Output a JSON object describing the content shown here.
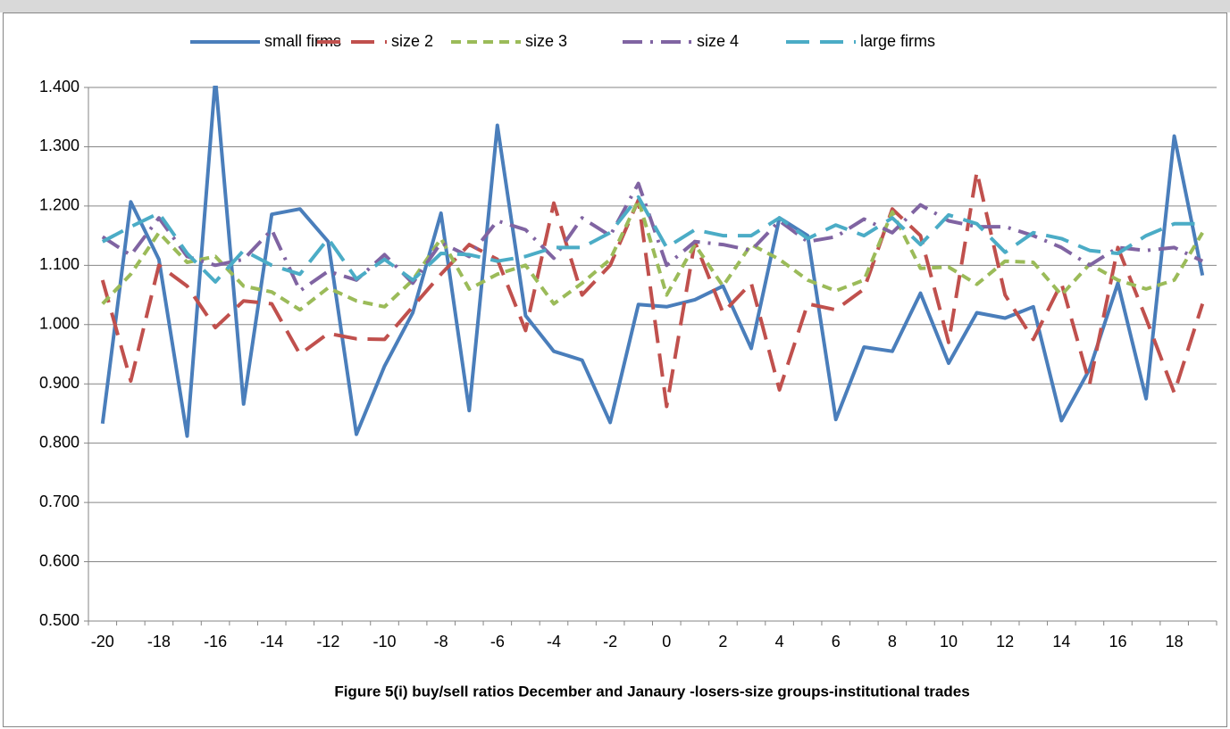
{
  "chart_data": {
    "type": "line",
    "title": "Figure 5(i) buy/sell ratios December and Janaury -losers-size groups-institutional trades",
    "categories": [
      "-20",
      null,
      "-18",
      null,
      "-16",
      null,
      "-14",
      null,
      "-12",
      null,
      "-10",
      null,
      "-8",
      null,
      "-6",
      null,
      "-4",
      null,
      "-2",
      null,
      "0",
      null,
      "2",
      null,
      "4",
      null,
      "6",
      null,
      "8",
      null,
      "10",
      null,
      "12",
      null,
      "14",
      null,
      "16",
      null,
      "18",
      null
    ],
    "series": [
      {
        "name": "small firms",
        "color": "#4a7ebb",
        "dash": "solid",
        "values": [
          0.833,
          1.207,
          1.11,
          0.812,
          1.415,
          0.866,
          1.186,
          1.195,
          1.14,
          0.815,
          0.93,
          1.02,
          1.188,
          0.855,
          1.336,
          1.015,
          0.955,
          0.94,
          0.835,
          1.034,
          1.03,
          1.042,
          1.065,
          0.96,
          1.18,
          1.15,
          0.84,
          0.962,
          0.955,
          1.053,
          0.935,
          1.02,
          1.011,
          1.03,
          0.838,
          0.925,
          1.07,
          0.875,
          1.318,
          1.083
        ]
      },
      {
        "name": "size 2",
        "color": "#c0504d",
        "dash": "long-dash",
        "values": [
          1.075,
          0.905,
          1.1,
          1.065,
          0.995,
          1.04,
          1.035,
          0.95,
          0.985,
          0.976,
          0.975,
          1.03,
          1.085,
          1.135,
          1.11,
          0.99,
          1.205,
          1.05,
          1.1,
          1.21,
          0.862,
          1.14,
          1.02,
          1.07,
          0.89,
          1.035,
          1.025,
          1.06,
          1.195,
          1.15,
          0.97,
          1.258,
          1.05,
          0.975,
          1.07,
          0.9,
          1.13,
          1.01,
          0.885,
          1.035
        ]
      },
      {
        "name": "size 3",
        "color": "#9bbb59",
        "dash": "dash",
        "values": [
          1.035,
          1.085,
          1.155,
          1.105,
          1.115,
          1.065,
          1.055,
          1.025,
          1.062,
          1.04,
          1.03,
          1.075,
          1.145,
          1.06,
          1.085,
          1.1,
          1.035,
          1.07,
          1.11,
          1.21,
          1.05,
          1.135,
          1.065,
          1.135,
          1.11,
          1.075,
          1.057,
          1.075,
          1.19,
          1.095,
          1.097,
          1.068,
          1.107,
          1.105,
          1.05,
          1.102,
          1.075,
          1.06,
          1.075,
          1.155
        ]
      },
      {
        "name": "size 4",
        "color": "#8064a2",
        "dash": "dash-dot",
        "values": [
          1.148,
          1.117,
          1.18,
          1.115,
          1.1,
          1.11,
          1.16,
          1.057,
          1.09,
          1.075,
          1.118,
          1.07,
          1.138,
          1.115,
          1.175,
          1.16,
          1.112,
          1.18,
          1.15,
          1.238,
          1.1,
          1.14,
          1.135,
          1.125,
          1.175,
          1.14,
          1.148,
          1.178,
          1.155,
          1.202,
          1.175,
          1.165,
          1.165,
          1.15,
          1.13,
          1.1,
          1.13,
          1.125,
          1.13,
          1.107
        ]
      },
      {
        "name": "large firms",
        "color": "#4bacc6",
        "dash": "long-dash",
        "values": [
          1.14,
          1.165,
          1.188,
          1.12,
          1.072,
          1.125,
          1.1,
          1.085,
          1.145,
          1.077,
          1.11,
          1.075,
          1.12,
          1.118,
          1.107,
          1.115,
          1.13,
          1.13,
          1.155,
          1.215,
          1.13,
          1.16,
          1.15,
          1.15,
          1.18,
          1.145,
          1.168,
          1.15,
          1.18,
          1.135,
          1.185,
          1.17,
          1.122,
          1.155,
          1.145,
          1.125,
          1.12,
          1.15,
          1.17,
          1.17
        ]
      }
    ],
    "ylim": [
      0.5,
      1.4
    ],
    "yticks": [
      {
        "value": 0.5,
        "label": "0.500"
      },
      {
        "value": 0.6,
        "label": "0.600"
      },
      {
        "value": 0.7,
        "label": "0.700"
      },
      {
        "value": 0.8,
        "label": "0.800"
      },
      {
        "value": 0.9,
        "label": "0.900"
      },
      {
        "value": 1.0,
        "label": "1.000"
      },
      {
        "value": 1.1,
        "label": "1.100"
      },
      {
        "value": 1.2,
        "label": "1.200"
      },
      {
        "value": 1.3,
        "label": "1.300"
      },
      {
        "value": 1.4,
        "label": "1.400"
      }
    ],
    "grid": true,
    "legend": "top"
  }
}
